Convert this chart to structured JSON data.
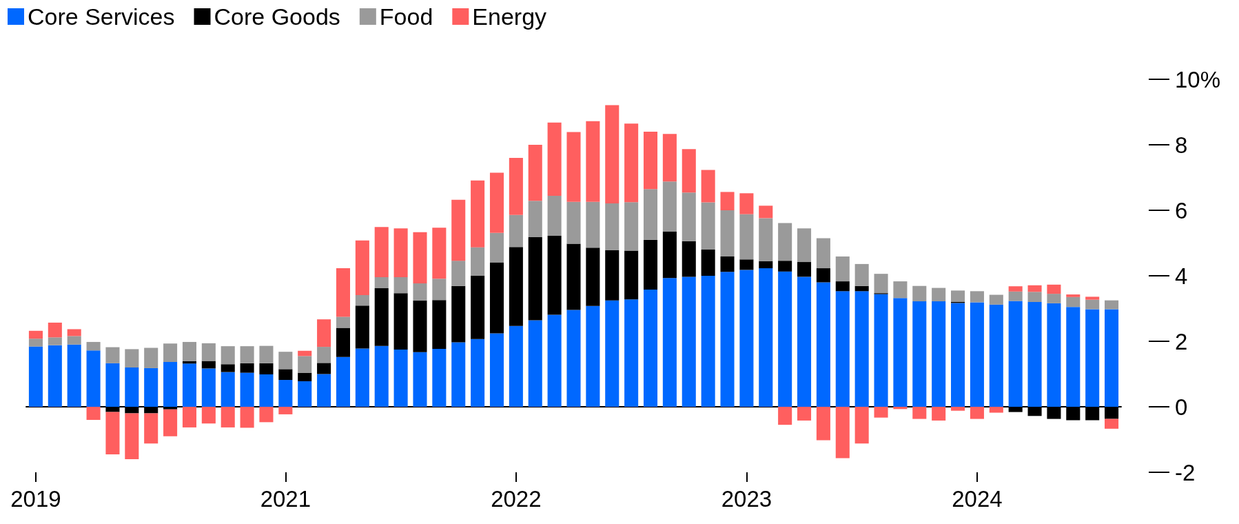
{
  "chart_data": {
    "type": "bar",
    "stacked": true,
    "legend": "top left",
    "grid": "y",
    "categories": [
      "2019",
      null,
      null,
      null,
      null,
      null,
      null,
      null,
      null,
      null,
      null,
      null,
      null,
      "2021",
      null,
      null,
      null,
      null,
      null,
      null,
      null,
      null,
      null,
      null,
      null,
      "2022",
      null,
      null,
      null,
      null,
      null,
      null,
      null,
      null,
      null,
      null,
      null,
      "2023",
      null,
      null,
      null,
      null,
      null,
      null,
      null,
      null,
      null,
      null,
      null,
      "2024",
      null,
      null,
      null,
      null,
      null,
      null,
      null
    ],
    "ylim": [
      -2,
      10
    ],
    "yticks": [
      -2,
      0,
      2,
      4,
      6,
      8,
      {
        "value": 10,
        "label": "10%"
      }
    ],
    "series": [
      {
        "name": "Core Services",
        "color": "#0068ff",
        "values": [
          1.84,
          1.88,
          1.9,
          1.72,
          1.33,
          1.2,
          1.18,
          1.37,
          1.32,
          1.17,
          1.06,
          1.04,
          0.99,
          0.82,
          0.78,
          1.0,
          1.52,
          1.78,
          1.86,
          1.75,
          1.67,
          1.77,
          1.97,
          2.07,
          2.24,
          2.47,
          2.64,
          2.81,
          2.96,
          3.08,
          3.25,
          3.28,
          3.58,
          3.93,
          3.97,
          4.0,
          4.12,
          4.18,
          4.23,
          4.13,
          3.97,
          3.8,
          3.53,
          3.53,
          3.44,
          3.32,
          3.22,
          3.22,
          3.17,
          3.19,
          3.12,
          3.23,
          3.2,
          3.16,
          3.05,
          2.98,
          2.98
        ]
      },
      {
        "name": "Core Goods",
        "color": "#000000",
        "values": [
          0,
          0,
          0,
          0,
          -0.16,
          -0.2,
          -0.2,
          -0.08,
          0.07,
          0.23,
          0.24,
          0.29,
          0.34,
          0.33,
          0.26,
          0.34,
          0.89,
          1.31,
          1.76,
          1.72,
          1.57,
          1.49,
          1.72,
          1.93,
          2.17,
          2.41,
          2.54,
          2.41,
          2.02,
          1.78,
          1.53,
          1.49,
          1.52,
          1.42,
          1.09,
          0.8,
          0.47,
          0.32,
          0.22,
          0.33,
          0.45,
          0.43,
          0.3,
          0.16,
          0.03,
          0,
          0,
          0,
          0.03,
          0,
          0,
          -0.16,
          -0.28,
          -0.37,
          -0.41,
          -0.41,
          -0.37
        ]
      },
      {
        "name": "Food",
        "color": "#9a9a9a",
        "values": [
          0.24,
          0.24,
          0.26,
          0.26,
          0.49,
          0.56,
          0.62,
          0.56,
          0.59,
          0.54,
          0.55,
          0.52,
          0.53,
          0.53,
          0.51,
          0.49,
          0.34,
          0.32,
          0.34,
          0.49,
          0.53,
          0.65,
          0.77,
          0.87,
          0.9,
          0.98,
          1.11,
          1.22,
          1.28,
          1.4,
          1.43,
          1.48,
          1.55,
          1.53,
          1.48,
          1.44,
          1.41,
          1.38,
          1.31,
          1.15,
          1.03,
          0.92,
          0.76,
          0.67,
          0.59,
          0.51,
          0.47,
          0.41,
          0.35,
          0.34,
          0.3,
          0.29,
          0.31,
          0.29,
          0.3,
          0.29,
          0.27
        ]
      },
      {
        "name": "Energy",
        "color": "#ff5f5f",
        "values": [
          0.24,
          0.45,
          0.21,
          -0.4,
          -1.29,
          -1.4,
          -0.92,
          -0.82,
          -0.63,
          -0.51,
          -0.63,
          -0.64,
          -0.47,
          -0.23,
          0.16,
          0.84,
          1.48,
          1.67,
          1.53,
          1.49,
          1.56,
          1.56,
          1.86,
          2.04,
          1.84,
          1.74,
          1.71,
          2.24,
          2.13,
          2.46,
          3.0,
          2.4,
          1.75,
          1.45,
          1.33,
          0.99,
          0.56,
          0.64,
          0.38,
          -0.55,
          -0.42,
          -1.02,
          -1.57,
          -1.12,
          -0.33,
          -0.07,
          -0.37,
          -0.42,
          -0.12,
          -0.37,
          -0.18,
          0.16,
          0.2,
          0.28,
          0.08,
          0.09,
          -0.3
        ]
      }
    ]
  }
}
